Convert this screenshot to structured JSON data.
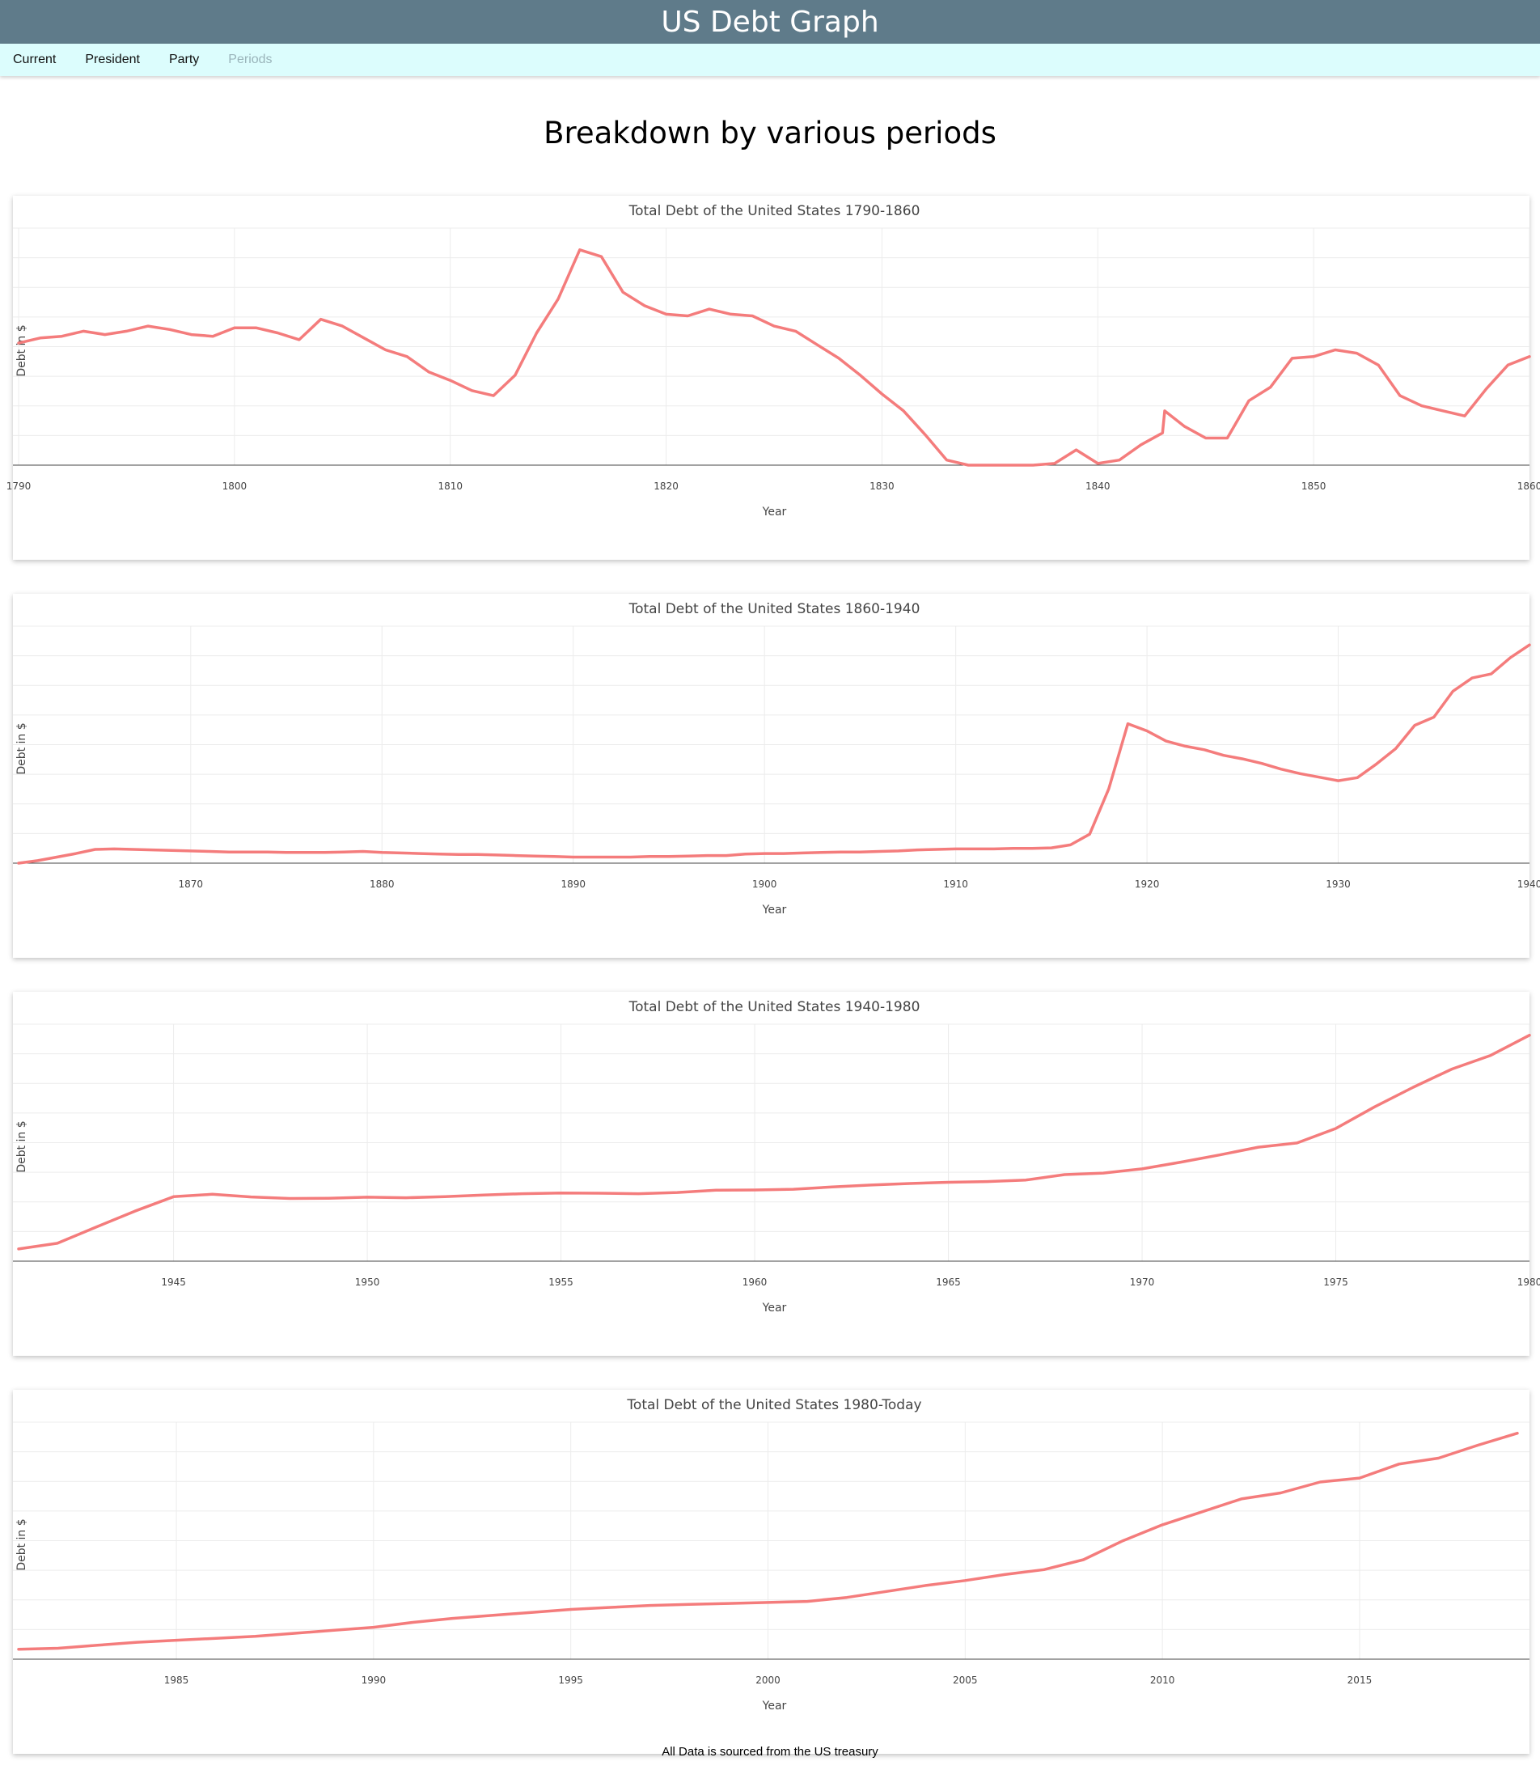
{
  "header": {
    "title": "US Debt Graph"
  },
  "nav": {
    "items": [
      {
        "label": "Current",
        "active": false
      },
      {
        "label": "President",
        "active": false
      },
      {
        "label": "Party",
        "active": false
      },
      {
        "label": "Periods",
        "active": true
      }
    ]
  },
  "page_title": "Breakdown by various periods",
  "footer": "All Data is sourced from the US treasury",
  "colors": {
    "line": "#f47c7c",
    "header_bg": "#5f7b8a",
    "nav_bg": "#dcfdfd"
  },
  "chart_data": [
    {
      "type": "line",
      "title": "Total Debt of the United States 1790-1860",
      "xlabel": "Year",
      "ylabel": "Debt in $",
      "x_ticks": [
        1790,
        1800,
        1810,
        1820,
        1830,
        1840,
        1850,
        1860
      ],
      "xlim": [
        1790,
        1860
      ],
      "ylim": [
        0,
        135
      ],
      "grid": true,
      "x": [
        1790,
        1791,
        1792,
        1793,
        1794,
        1795,
        1796,
        1797,
        1798,
        1799,
        1800,
        1801,
        1802,
        1803,
        1804,
        1805,
        1806,
        1807,
        1808,
        1809,
        1810,
        1811,
        1812,
        1813,
        1814,
        1815,
        1816,
        1817,
        1818,
        1819,
        1820,
        1821,
        1822,
        1823,
        1824,
        1825,
        1826,
        1827,
        1828,
        1829,
        1830,
        1831,
        1832,
        1833,
        1834,
        1835,
        1836,
        1837,
        1838,
        1839,
        1840,
        1841,
        1842,
        1843,
        1843.1,
        1844,
        1845,
        1846,
        1847,
        1848,
        1849,
        1850,
        1851,
        1852,
        1853,
        1854,
        1855,
        1856,
        1857,
        1858,
        1859,
        1860
      ],
      "y": [
        72,
        75,
        76,
        79,
        77,
        79,
        82,
        80,
        77,
        76,
        81,
        81,
        78,
        74,
        86,
        82,
        75,
        68,
        64,
        55,
        50,
        44,
        41,
        53,
        78,
        98,
        127,
        123,
        102,
        94,
        89,
        88,
        92,
        89,
        88,
        82,
        79,
        71,
        63,
        53,
        42,
        32,
        18,
        3,
        0,
        -5,
        -5,
        -4,
        1,
        9,
        1,
        3,
        12,
        19,
        32,
        23,
        16,
        16,
        38,
        46,
        63,
        64,
        68,
        66,
        59,
        41,
        35,
        32,
        29,
        45,
        59,
        64
      ]
    },
    {
      "type": "line",
      "title": "Total Debt of the United States 1860-1940",
      "xlabel": "Year",
      "ylabel": "Debt in $",
      "x_ticks": [
        1870,
        1880,
        1890,
        1900,
        1910,
        1920,
        1930,
        1940
      ],
      "xlim": [
        1861,
        1940
      ],
      "ylim": [
        0,
        45
      ],
      "grid": true,
      "x": [
        1861,
        1862,
        1863,
        1864,
        1865,
        1866,
        1867,
        1868,
        1869,
        1870,
        1871,
        1872,
        1873,
        1874,
        1875,
        1876,
        1877,
        1878,
        1879,
        1880,
        1881,
        1882,
        1883,
        1884,
        1885,
        1886,
        1887,
        1888,
        1889,
        1890,
        1891,
        1892,
        1893,
        1894,
        1895,
        1896,
        1897,
        1898,
        1899,
        1900,
        1901,
        1902,
        1903,
        1904,
        1905,
        1906,
        1907,
        1908,
        1909,
        1910,
        1911,
        1912,
        1913,
        1914,
        1915,
        1916,
        1917,
        1918,
        1919,
        1920,
        1921,
        1922,
        1923,
        1924,
        1925,
        1926,
        1927,
        1928,
        1929,
        1930,
        1931,
        1932,
        1933,
        1934,
        1935,
        1936,
        1937,
        1938,
        1939,
        1940
      ],
      "y": [
        0,
        0.5,
        1.2,
        1.9,
        2.7,
        2.8,
        2.7,
        2.6,
        2.5,
        2.4,
        2.3,
        2.2,
        2.2,
        2.2,
        2.1,
        2.1,
        2.1,
        2.2,
        2.3,
        2.1,
        2.0,
        1.9,
        1.8,
        1.7,
        1.7,
        1.6,
        1.5,
        1.4,
        1.3,
        1.2,
        1.2,
        1.2,
        1.2,
        1.3,
        1.3,
        1.4,
        1.5,
        1.5,
        1.8,
        1.9,
        1.9,
        2.0,
        2.1,
        2.2,
        2.2,
        2.3,
        2.4,
        2.6,
        2.7,
        2.8,
        2.8,
        2.8,
        2.9,
        2.9,
        3.0,
        3.6,
        5.7,
        14.6,
        27.4,
        26.0,
        24.0,
        23.0,
        22.3,
        21.2,
        20.5,
        19.6,
        18.5,
        17.6,
        16.9,
        16.2,
        16.8,
        19.5,
        22.5,
        27.1,
        28.7,
        33.8,
        36.4,
        37.2,
        40.4,
        42.9
      ]
    },
    {
      "type": "line",
      "title": "Total Debt of the United States 1940-1980",
      "xlabel": "Year",
      "ylabel": "Debt in $",
      "x_ticks": [
        1945,
        1950,
        1955,
        1960,
        1965,
        1970,
        1975,
        1980
      ],
      "xlim": [
        1941,
        1980
      ],
      "ylim": [
        0,
        920
      ],
      "grid": true,
      "x": [
        1941,
        1942,
        1943,
        1944,
        1945,
        1946,
        1947,
        1948,
        1949,
        1950,
        1951,
        1952,
        1953,
        1954,
        1955,
        1956,
        1957,
        1958,
        1959,
        1960,
        1961,
        1962,
        1963,
        1964,
        1965,
        1966,
        1967,
        1968,
        1969,
        1970,
        1971,
        1972,
        1973,
        1974,
        1975,
        1976,
        1977,
        1978,
        1979,
        1980
      ],
      "y": [
        49,
        72,
        137,
        201,
        259,
        269,
        258,
        252,
        253,
        257,
        255,
        259,
        266,
        271,
        274,
        273,
        271,
        276,
        285,
        286,
        289,
        298,
        306,
        312,
        317,
        320,
        326,
        348,
        354,
        371,
        398,
        427,
        458,
        475,
        533,
        620,
        699,
        772,
        827,
        908
      ]
    },
    {
      "type": "line",
      "title": "Total Debt of the United States 1980-Today",
      "xlabel": "Year",
      "ylabel": "Debt in $",
      "x_ticks": [
        1985,
        1990,
        1995,
        2000,
        2005,
        2010,
        2015
      ],
      "xlim": [
        1981,
        2019
      ],
      "ylim": [
        0,
        23
      ],
      "grid": true,
      "x": [
        1981,
        1982,
        1983,
        1984,
        1985,
        1986,
        1987,
        1988,
        1989,
        1990,
        1991,
        1992,
        1993,
        1994,
        1995,
        1996,
        1997,
        1998,
        1999,
        2000,
        2001,
        2002,
        2003,
        2004,
        2005,
        2006,
        2007,
        2008,
        2009,
        2010,
        2011,
        2012,
        2013,
        2014,
        2015,
        2016,
        2017,
        2018,
        2019
      ],
      "y": [
        1.0,
        1.1,
        1.4,
        1.7,
        1.9,
        2.1,
        2.3,
        2.6,
        2.9,
        3.2,
        3.7,
        4.1,
        4.4,
        4.7,
        5.0,
        5.2,
        5.4,
        5.5,
        5.6,
        5.7,
        5.8,
        6.2,
        6.8,
        7.4,
        7.9,
        8.5,
        9.0,
        10.0,
        11.9,
        13.5,
        14.8,
        16.1,
        16.7,
        17.8,
        18.2,
        19.6,
        20.2,
        21.5,
        22.7
      ]
    }
  ]
}
